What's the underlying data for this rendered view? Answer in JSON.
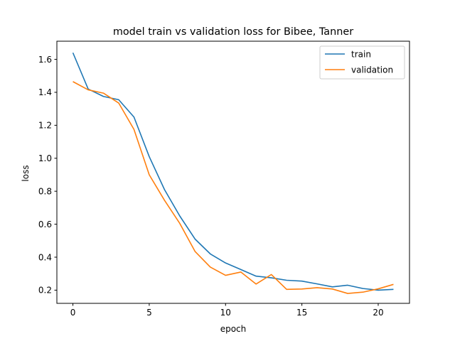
{
  "chart_data": {
    "type": "line",
    "title": "model train vs validation loss for Bibee, Tanner",
    "xlabel": "epoch",
    "ylabel": "loss",
    "xlim": [
      -1.05,
      22.05
    ],
    "ylim": [
      0.12,
      1.71
    ],
    "xticks": [
      0,
      5,
      10,
      15,
      20
    ],
    "xtick_labels": [
      "0",
      "5",
      "10",
      "15",
      "20"
    ],
    "yticks": [
      0.2,
      0.4,
      0.6,
      0.8,
      1.0,
      1.2,
      1.4,
      1.6
    ],
    "ytick_labels": [
      "0.2",
      "0.4",
      "0.6",
      "0.8",
      "1.0",
      "1.2",
      "1.4",
      "1.6"
    ],
    "grid": false,
    "legend_position": "top-right",
    "x": [
      0,
      1,
      2,
      3,
      4,
      5,
      6,
      7,
      8,
      9,
      10,
      11,
      12,
      13,
      14,
      15,
      16,
      17,
      18,
      19,
      20,
      21
    ],
    "series": [
      {
        "name": "train",
        "color": "#1f77b4",
        "values": [
          1.64,
          1.42,
          1.375,
          1.355,
          1.25,
          1.01,
          0.81,
          0.65,
          0.51,
          0.42,
          0.365,
          0.325,
          0.285,
          0.275,
          0.26,
          0.255,
          0.238,
          0.22,
          0.23,
          0.21,
          0.2,
          0.205
        ]
      },
      {
        "name": "validation",
        "color": "#ff7f0e",
        "values": [
          1.465,
          1.415,
          1.395,
          1.335,
          1.175,
          0.9,
          0.745,
          0.605,
          0.435,
          0.34,
          0.29,
          0.31,
          0.237,
          0.295,
          0.205,
          0.207,
          0.215,
          0.207,
          0.18,
          0.188,
          0.208,
          0.235
        ]
      }
    ]
  }
}
